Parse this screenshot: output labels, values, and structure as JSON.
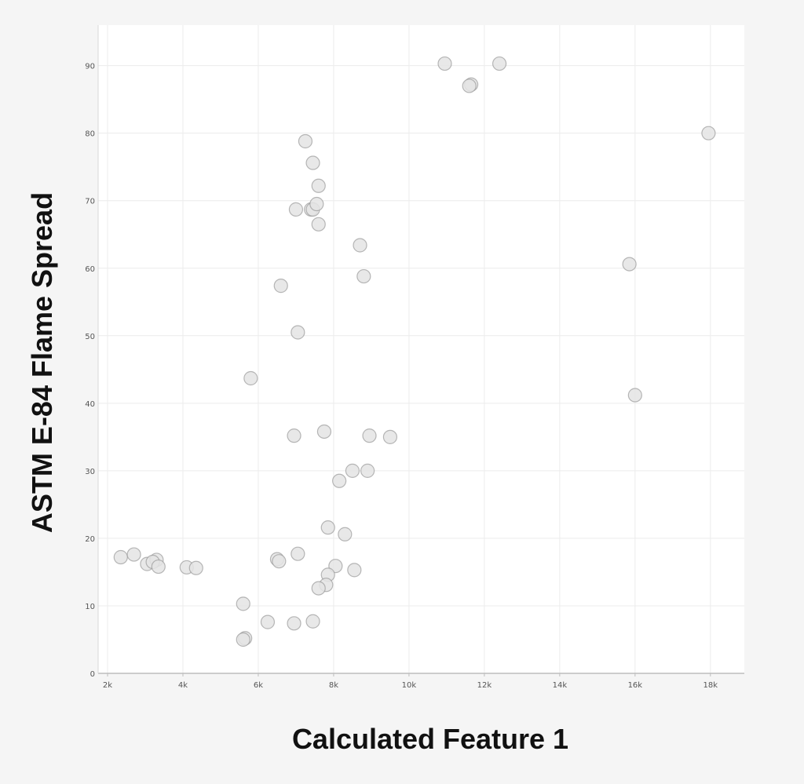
{
  "chart_data": {
    "type": "scatter",
    "xlabel": "Calculated Feature 1",
    "ylabel": "ASTM E-84 Flame Spread",
    "xlim": [
      1750,
      18900
    ],
    "ylim": [
      0,
      96
    ],
    "x_ticks": [
      {
        "value": 2000,
        "label": "2k"
      },
      {
        "value": 4000,
        "label": "4k"
      },
      {
        "value": 6000,
        "label": "6k"
      },
      {
        "value": 8000,
        "label": "8k"
      },
      {
        "value": 10000,
        "label": "10k"
      },
      {
        "value": 12000,
        "label": "12k"
      },
      {
        "value": 14000,
        "label": "14k"
      },
      {
        "value": 16000,
        "label": "16k"
      },
      {
        "value": 18000,
        "label": "18k"
      }
    ],
    "y_ticks": [
      {
        "value": 0,
        "label": "0"
      },
      {
        "value": 10,
        "label": "10"
      },
      {
        "value": 20,
        "label": "20"
      },
      {
        "value": 30,
        "label": "30"
      },
      {
        "value": 40,
        "label": "40"
      },
      {
        "value": 50,
        "label": "50"
      },
      {
        "value": 60,
        "label": "60"
      },
      {
        "value": 70,
        "label": "70"
      },
      {
        "value": 80,
        "label": "80"
      },
      {
        "value": 90,
        "label": "90"
      }
    ],
    "grid": true,
    "points": [
      {
        "x": 10950,
        "y": 90.3
      },
      {
        "x": 12400,
        "y": 90.3
      },
      {
        "x": 11650,
        "y": 87.2
      },
      {
        "x": 11600,
        "y": 87.0
      },
      {
        "x": 17950,
        "y": 80.0
      },
      {
        "x": 7250,
        "y": 78.8
      },
      {
        "x": 7450,
        "y": 75.6
      },
      {
        "x": 7600,
        "y": 72.2
      },
      {
        "x": 7000,
        "y": 68.7
      },
      {
        "x": 7400,
        "y": 68.7
      },
      {
        "x": 7450,
        "y": 68.7
      },
      {
        "x": 7550,
        "y": 69.5
      },
      {
        "x": 7600,
        "y": 66.5
      },
      {
        "x": 8700,
        "y": 63.4
      },
      {
        "x": 15850,
        "y": 60.6
      },
      {
        "x": 8800,
        "y": 58.8
      },
      {
        "x": 6600,
        "y": 57.4
      },
      {
        "x": 7050,
        "y": 50.5
      },
      {
        "x": 5800,
        "y": 43.7
      },
      {
        "x": 16000,
        "y": 41.2
      },
      {
        "x": 6950,
        "y": 35.2
      },
      {
        "x": 7750,
        "y": 35.8
      },
      {
        "x": 8950,
        "y": 35.2
      },
      {
        "x": 9500,
        "y": 35.0
      },
      {
        "x": 8500,
        "y": 30.0
      },
      {
        "x": 8900,
        "y": 30.0
      },
      {
        "x": 8150,
        "y": 28.5
      },
      {
        "x": 7850,
        "y": 21.6
      },
      {
        "x": 8300,
        "y": 20.6
      },
      {
        "x": 2350,
        "y": 17.2
      },
      {
        "x": 2700,
        "y": 17.6
      },
      {
        "x": 3050,
        "y": 16.2
      },
      {
        "x": 3300,
        "y": 16.8
      },
      {
        "x": 3200,
        "y": 16.5
      },
      {
        "x": 3350,
        "y": 15.8
      },
      {
        "x": 4100,
        "y": 15.7
      },
      {
        "x": 4350,
        "y": 15.6
      },
      {
        "x": 6500,
        "y": 16.9
      },
      {
        "x": 6550,
        "y": 16.6
      },
      {
        "x": 7050,
        "y": 17.7
      },
      {
        "x": 8050,
        "y": 15.9
      },
      {
        "x": 8550,
        "y": 15.3
      },
      {
        "x": 7850,
        "y": 14.6
      },
      {
        "x": 7800,
        "y": 13.1
      },
      {
        "x": 7600,
        "y": 12.6
      },
      {
        "x": 5600,
        "y": 10.3
      },
      {
        "x": 6250,
        "y": 7.6
      },
      {
        "x": 6950,
        "y": 7.4
      },
      {
        "x": 7450,
        "y": 7.7
      },
      {
        "x": 5650,
        "y": 5.2
      },
      {
        "x": 5600,
        "y": 5.0
      }
    ]
  }
}
